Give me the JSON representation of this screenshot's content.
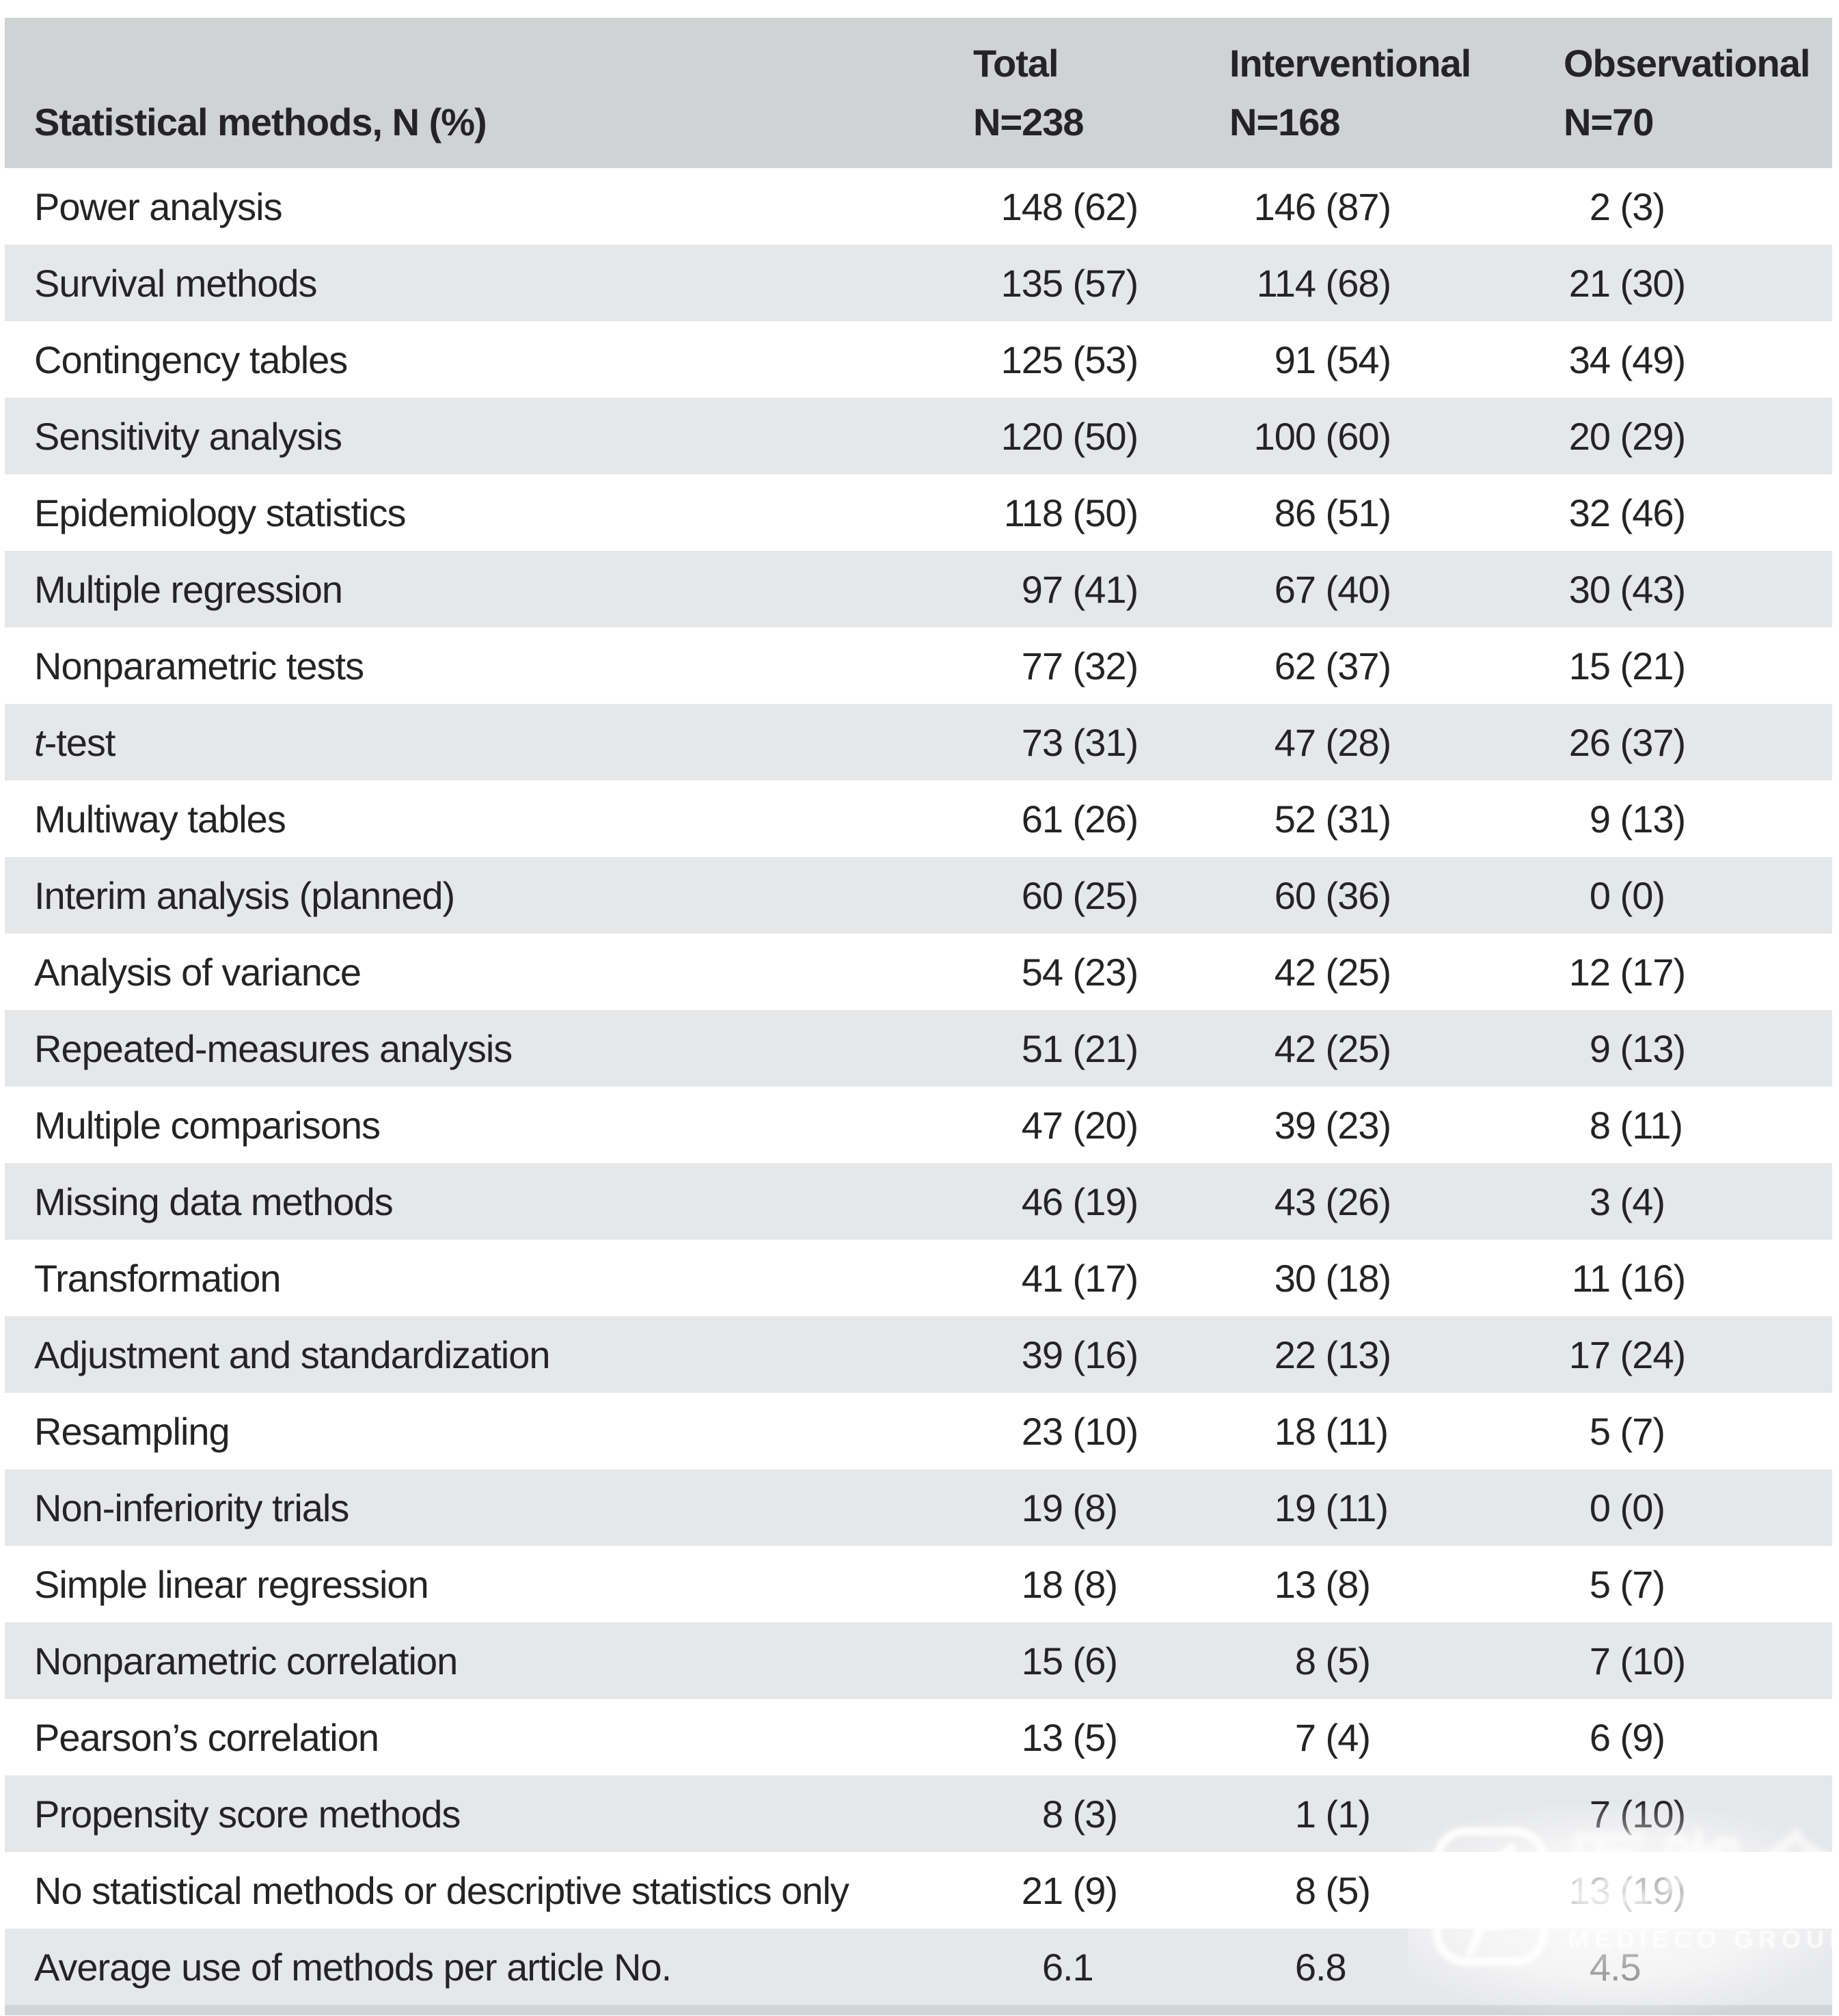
{
  "colors": {
    "header_bg": "#d0d2d4",
    "stripe_bg": "#e6e7e9",
    "bottom_strip": "#d2d4d6",
    "text": "#242427",
    "watermark": "#ffffff"
  },
  "table": {
    "header": {
      "label": "Statistical methods, N (%)",
      "cols": [
        {
          "line1": "Total",
          "line2": "N=238"
        },
        {
          "line1": "Interventional",
          "line2": "N=168"
        },
        {
          "line1": "Observational",
          "line2": "N=70"
        }
      ]
    },
    "rows": [
      {
        "label": "Power analysis",
        "total": "148 (62)",
        "interventional": "146 (87)",
        "observational": "2 (3)"
      },
      {
        "label": "Survival methods",
        "total": "135 (57)",
        "interventional": "114 (68)",
        "observational": "21 (30)"
      },
      {
        "label": "Contingency tables",
        "total": "125 (53)",
        "interventional": "91 (54)",
        "observational": "34 (49)"
      },
      {
        "label": "Sensitivity analysis",
        "total": "120 (50)",
        "interventional": "100 (60)",
        "observational": "20 (29)"
      },
      {
        "label": "Epidemiology statistics",
        "total": "118 (50)",
        "interventional": "86 (51)",
        "observational": "32 (46)"
      },
      {
        "label": "Multiple regression",
        "total": "97 (41)",
        "interventional": "67 (40)",
        "observational": "30 (43)"
      },
      {
        "label": "Nonparametric tests",
        "total": "77 (32)",
        "interventional": "62 (37)",
        "observational": "15 (21)"
      },
      {
        "label": "t-test",
        "italic_first": true,
        "total": "73 (31)",
        "interventional": "47 (28)",
        "observational": "26 (37)"
      },
      {
        "label": "Multiway tables",
        "total": "61 (26)",
        "interventional": "52 (31)",
        "observational": "9 (13)"
      },
      {
        "label": "Interim analysis (planned)",
        "total": "60 (25)",
        "interventional": "60 (36)",
        "observational": "0 (0)"
      },
      {
        "label": "Analysis of variance",
        "total": "54 (23)",
        "interventional": "42 (25)",
        "observational": "12 (17)"
      },
      {
        "label": "Repeated-measures analysis",
        "total": "51 (21)",
        "interventional": "42 (25)",
        "observational": "9 (13)"
      },
      {
        "label": "Multiple comparisons",
        "total": "47 (20)",
        "interventional": "39 (23)",
        "observational": "8 (11)"
      },
      {
        "label": "Missing data methods",
        "total": "46 (19)",
        "interventional": "43 (26)",
        "observational": "3 (4)"
      },
      {
        "label": "Transformation",
        "total": "41 (17)",
        "interventional": "30 (18)",
        "observational": "11 (16)"
      },
      {
        "label": "Adjustment and standardization",
        "total": "39 (16)",
        "interventional": "22 (13)",
        "observational": "17 (24)"
      },
      {
        "label": "Resampling",
        "total": "23 (10)",
        "interventional": "18 (11)",
        "observational": "5 (7)"
      },
      {
        "label": "Non-inferiority trials",
        "total": "19 (8)",
        "interventional": "19 (11)",
        "observational": "0 (0)"
      },
      {
        "label": "Simple linear regression",
        "total": "18 (8)",
        "interventional": "13 (8)",
        "observational": "5 (7)"
      },
      {
        "label": "Nonparametric correlation",
        "total": "15 (6)",
        "interventional": "8 (5)",
        "observational": "7 (10)"
      },
      {
        "label": "Pearson’s correlation",
        "total": "13 (5)",
        "interventional": "7 (4)",
        "observational": "6 (9)"
      },
      {
        "label": "Propensity score methods",
        "total": "8 (3)",
        "interventional": "1 (1)",
        "observational": "7 (10)"
      },
      {
        "label": "No statistical methods or descriptive statistics only",
        "total": "21 (9)",
        "interventional": "8 (5)",
        "observational": "13 (19)"
      },
      {
        "label": "Average use of methods per article No.",
        "total": "6.1",
        "interventional": "6.8",
        "observational": "4.5"
      }
    ]
  },
  "watermark": {
    "cjk": "医咖会",
    "subtitle": "MEDIECO GROUP"
  }
}
